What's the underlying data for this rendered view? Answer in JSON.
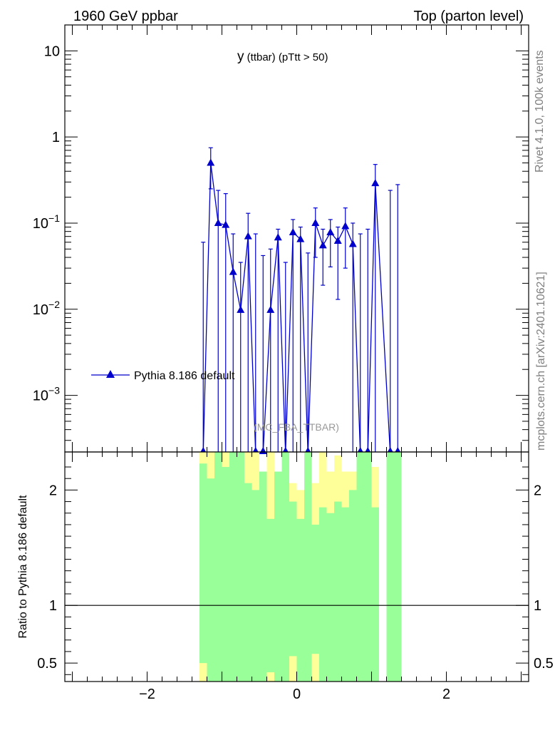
{
  "header": {
    "left": "1960 GeV ppbar",
    "right": "Top (parton level)"
  },
  "plot_title": {
    "main": "y",
    "sub": " (ttbar)  (pTtt > 50)"
  },
  "watermark": "(MC_FBA_TTBAR)",
  "side_text": {
    "top": "Rivet 4.1.0,  100k events",
    "bottom": "mcplots.cern.ch [arXiv:2401.10621]"
  },
  "legend": {
    "label": "Pythia 8.186 default",
    "position": "left"
  },
  "colors": {
    "series": "#0000cc",
    "mc_stat_band": "#99ff99",
    "mc_total_band": "#ffff99",
    "ref_line": "#000000"
  },
  "chart_data": [
    {
      "type": "line",
      "name": "main",
      "series_name": "Pythia 8.186 default",
      "xlim": [
        -3.1,
        3.1
      ],
      "ylim": [
        0.00022,
        20
      ],
      "yscale": "log",
      "x_ticks": [
        -2,
        0,
        2
      ],
      "y_ticks": [
        {
          "value": 10,
          "label": "10"
        },
        {
          "value": 1,
          "label": "1"
        },
        {
          "value": 0.1,
          "base": "10",
          "exp": "−1"
        },
        {
          "value": 0.01,
          "base": "10",
          "exp": "−2"
        },
        {
          "value": 0.001,
          "base": "10",
          "exp": "−3"
        }
      ],
      "points": [
        {
          "x": -1.25,
          "y": 0.0,
          "lo": 0.0,
          "hi": 0.06
        },
        {
          "x": -1.15,
          "y": 0.5,
          "lo": 0.25,
          "hi": 0.75
        },
        {
          "x": -1.05,
          "y": 0.1,
          "lo": 0.0,
          "hi": 0.24
        },
        {
          "x": -0.95,
          "y": 0.095,
          "lo": 0.0,
          "hi": 0.22
        },
        {
          "x": -0.85,
          "y": 0.027,
          "lo": 0.0,
          "hi": 0.075
        },
        {
          "x": -0.75,
          "y": 0.0098,
          "lo": 0.0,
          "hi": 0.035
        },
        {
          "x": -0.65,
          "y": 0.07,
          "lo": 0.0,
          "hi": 0.13
        },
        {
          "x": -0.55,
          "y": 0.0,
          "lo": 0.0,
          "hi": 0.075
        },
        {
          "x": -0.45,
          "y": 0.0,
          "lo": 0.0,
          "hi": 0.042
        },
        {
          "x": -0.35,
          "y": 0.0098,
          "lo": 0.0,
          "hi": 0.05
        },
        {
          "x": -0.25,
          "y": 0.068,
          "lo": 0.0,
          "hi": 0.085
        },
        {
          "x": -0.15,
          "y": 0.0,
          "lo": 0.0,
          "hi": 0.035
        },
        {
          "x": -0.05,
          "y": 0.078,
          "lo": 0.0,
          "hi": 0.11
        },
        {
          "x": 0.05,
          "y": 0.065,
          "lo": 0.0,
          "hi": 0.09
        },
        {
          "x": 0.15,
          "y": 0.0,
          "lo": 0.0,
          "hi": 0.045
        },
        {
          "x": 0.25,
          "y": 0.1,
          "lo": 0.04,
          "hi": 0.15
        },
        {
          "x": 0.35,
          "y": 0.055,
          "lo": 0.019,
          "hi": 0.085
        },
        {
          "x": 0.45,
          "y": 0.078,
          "lo": 0.031,
          "hi": 0.11
        },
        {
          "x": 0.55,
          "y": 0.062,
          "lo": 0.013,
          "hi": 0.09
        },
        {
          "x": 0.65,
          "y": 0.092,
          "lo": 0.03,
          "hi": 0.15
        },
        {
          "x": 0.75,
          "y": 0.057,
          "lo": 0.0,
          "hi": 0.1
        },
        {
          "x": 0.85,
          "y": 0.0,
          "lo": 0.0,
          "hi": 0.075
        },
        {
          "x": 0.95,
          "y": 0.0,
          "lo": 0.0,
          "hi": 0.085
        },
        {
          "x": 1.05,
          "y": 0.29,
          "lo": 0.0,
          "hi": 0.48
        },
        {
          "x": 1.25,
          "y": 0.0,
          "lo": 0.0,
          "hi": 0.24
        },
        {
          "x": 1.35,
          "y": 0.0,
          "lo": 0.0,
          "hi": 0.28
        }
      ]
    },
    {
      "type": "area",
      "name": "ratio",
      "ylabel": "Ratio to Pythia 8.186 default",
      "xlim": [
        -3.1,
        3.1
      ],
      "ylim": [
        0.34,
        2.33
      ],
      "reference_line": 1,
      "x_ticks": [
        {
          "value": -2,
          "label": "−2"
        },
        {
          "value": 0,
          "label": "0"
        },
        {
          "value": 2,
          "label": "2"
        }
      ],
      "y_ticks": [
        {
          "value": 0.5,
          "label": "0.5"
        },
        {
          "value": 1,
          "label": "1"
        },
        {
          "value": 2,
          "label": "2"
        }
      ],
      "bin_width": 0.1,
      "bins": [
        {
          "x0": -1.3,
          "green_lo": 0.5,
          "green_hi": 2.23,
          "yellow_lo": 0.34,
          "yellow_hi": 2.33
        },
        {
          "x0": -1.2,
          "green_lo": 0.34,
          "green_hi": 2.1,
          "yellow_lo": 0.34,
          "yellow_hi": 2.33
        },
        {
          "x0": -1.1,
          "green_lo": 0.34,
          "green_hi": 2.33,
          "yellow_lo": 0.34,
          "yellow_hi": 2.33
        },
        {
          "x0": -1.0,
          "green_lo": 0.34,
          "green_hi": 2.2,
          "yellow_lo": 0.34,
          "yellow_hi": 2.33
        },
        {
          "x0": -0.9,
          "green_lo": 0.34,
          "green_hi": 2.33,
          "yellow_lo": 0.34,
          "yellow_hi": 2.33
        },
        {
          "x0": -0.8,
          "green_lo": 0.34,
          "green_hi": 2.33,
          "yellow_lo": 0.34,
          "yellow_hi": 2.33
        },
        {
          "x0": -0.7,
          "green_lo": 0.34,
          "green_hi": 2.06,
          "yellow_lo": 0.34,
          "yellow_hi": 2.33
        },
        {
          "x0": -0.6,
          "green_lo": 0.34,
          "green_hi": 2.0,
          "yellow_lo": 0.34,
          "yellow_hi": 2.33
        },
        {
          "x0": -0.5,
          "green_lo": 0.34,
          "green_hi": 2.16,
          "yellow_lo": 0.34,
          "yellow_hi": 2.16
        },
        {
          "x0": -0.4,
          "green_lo": 0.42,
          "green_hi": 1.75,
          "yellow_lo": 0.34,
          "yellow_hi": 2.33
        },
        {
          "x0": -0.3,
          "green_lo": 0.34,
          "green_hi": 2.16,
          "yellow_lo": 0.34,
          "yellow_hi": 2.16
        },
        {
          "x0": -0.2,
          "green_lo": 0.34,
          "green_hi": 2.33,
          "yellow_lo": 0.34,
          "yellow_hi": 2.33
        },
        {
          "x0": -0.1,
          "green_lo": 0.56,
          "green_hi": 1.9,
          "yellow_lo": 0.34,
          "yellow_hi": 2.06
        },
        {
          "x0": 0.0,
          "green_lo": 0.34,
          "green_hi": 1.75,
          "yellow_lo": 0.34,
          "yellow_hi": 2.0
        },
        {
          "x0": 0.1,
          "green_lo": 0.34,
          "green_hi": 2.33,
          "yellow_lo": 0.34,
          "yellow_hi": 2.33
        },
        {
          "x0": 0.2,
          "green_lo": 0.58,
          "green_hi": 1.7,
          "yellow_lo": 0.34,
          "yellow_hi": 2.06
        },
        {
          "x0": 0.3,
          "green_lo": 0.34,
          "green_hi": 1.85,
          "yellow_lo": 0.34,
          "yellow_hi": 2.33
        },
        {
          "x0": 0.4,
          "green_lo": 0.34,
          "green_hi": 1.8,
          "yellow_lo": 0.34,
          "yellow_hi": 2.16
        },
        {
          "x0": 0.5,
          "green_lo": 0.34,
          "green_hi": 1.9,
          "yellow_lo": 0.34,
          "yellow_hi": 2.3
        },
        {
          "x0": 0.6,
          "green_lo": 0.34,
          "green_hi": 1.85,
          "yellow_lo": 0.34,
          "yellow_hi": 2.16
        },
        {
          "x0": 0.7,
          "green_lo": 0.34,
          "green_hi": 2.0,
          "yellow_lo": 0.34,
          "yellow_hi": 2.16
        },
        {
          "x0": 0.8,
          "green_lo": 0.34,
          "green_hi": 2.33,
          "yellow_lo": 0.34,
          "yellow_hi": 2.33
        },
        {
          "x0": 0.9,
          "green_lo": 0.34,
          "green_hi": 2.33,
          "yellow_lo": 0.34,
          "yellow_hi": 2.33
        },
        {
          "x0": 1.0,
          "green_lo": 0.34,
          "green_hi": 1.85,
          "yellow_lo": 0.34,
          "yellow_hi": 2.2
        },
        {
          "x0": 1.2,
          "green_lo": 0.34,
          "green_hi": 2.33,
          "yellow_lo": 0.34,
          "yellow_hi": 2.33
        },
        {
          "x0": 1.3,
          "green_lo": 0.34,
          "green_hi": 2.33,
          "yellow_lo": 0.34,
          "yellow_hi": 2.33
        }
      ]
    }
  ]
}
